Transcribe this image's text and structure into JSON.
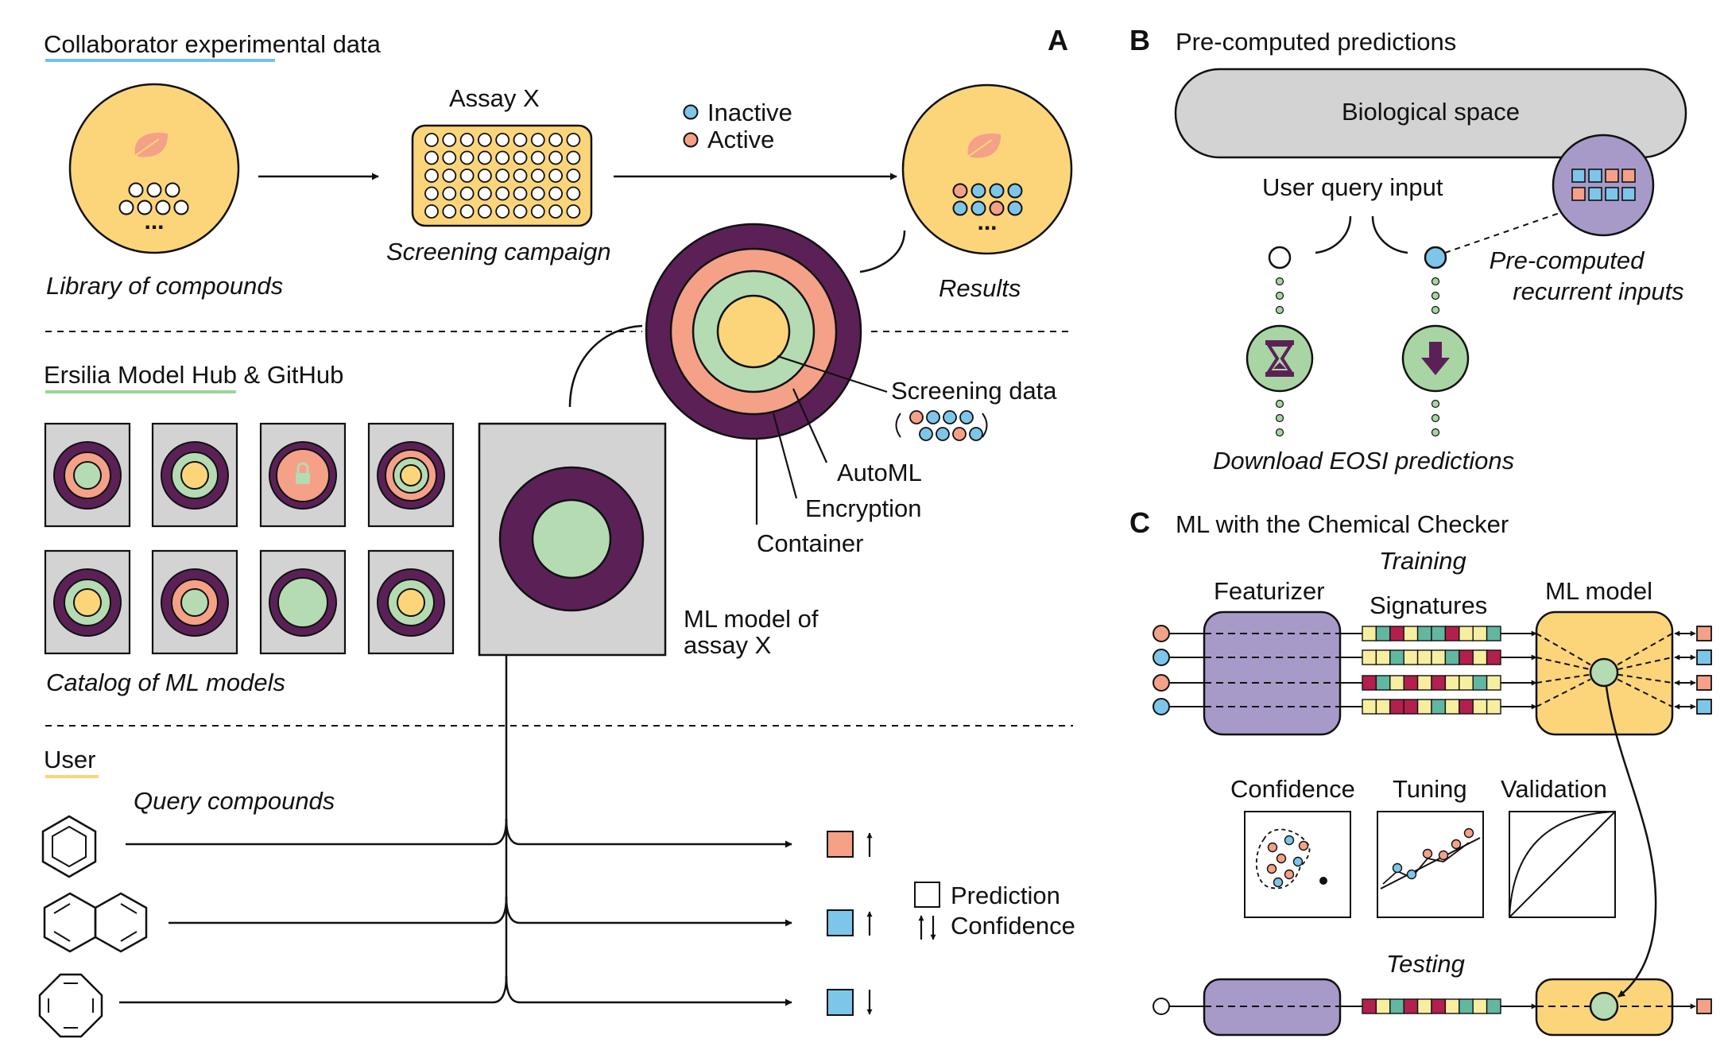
{
  "colors": {
    "yellow": "#fcd57a",
    "purple": "#5b2157",
    "salmon": "#f4a188",
    "green": "#b5dbb3",
    "blue": "#7dc6ea",
    "lavender": "#a79ac9",
    "gray": "#d3d3d3",
    "crimson": "#b3204d",
    "pale_yellow": "#f7ef9f",
    "teal": "#62b7a0",
    "underline_blue": "#72c3ea",
    "underline_green": "#9dd39a",
    "underline_yellow": "#fbd574",
    "icon_green": "#a8d5a3"
  },
  "panel_a": {
    "letter": "A",
    "collab_title": "Collaborator experimental data",
    "assay_title": "Assay X",
    "inactive": "Inactive",
    "active": "Active",
    "library_label": "Library of compounds",
    "screening_label": "Screening campaign",
    "results_label": "Results",
    "hub_title": "Ersilia Model Hub & GitHub",
    "screening_data": "Screening data",
    "automl": "AutoML",
    "encryption": "Encryption",
    "container": "Container",
    "catalog_label": "Catalog of ML models",
    "ml_model_line1": "ML model of",
    "ml_model_line2": "assay X",
    "user_title": "User",
    "query_compounds": "Query compounds",
    "prediction": "Prediction",
    "confidence": "Confidence",
    "ellipsis": "..."
  },
  "panel_b": {
    "letter": "B",
    "title": "Pre-computed predictions",
    "bio_space": "Biological space",
    "user_query": "User query input",
    "precomputed_line1": "Pre-computed",
    "precomputed_line2": "recurrent inputs",
    "download": "Download EOSI predictions"
  },
  "panel_c": {
    "letter": "C",
    "title": "ML with the Chemical Checker",
    "training": "Training",
    "featurizer": "Featurizer",
    "signatures": "Signatures",
    "ml_model": "ML model",
    "confidence": "Confidence",
    "tuning": "Tuning",
    "validation": "Validation",
    "testing": "Testing"
  }
}
